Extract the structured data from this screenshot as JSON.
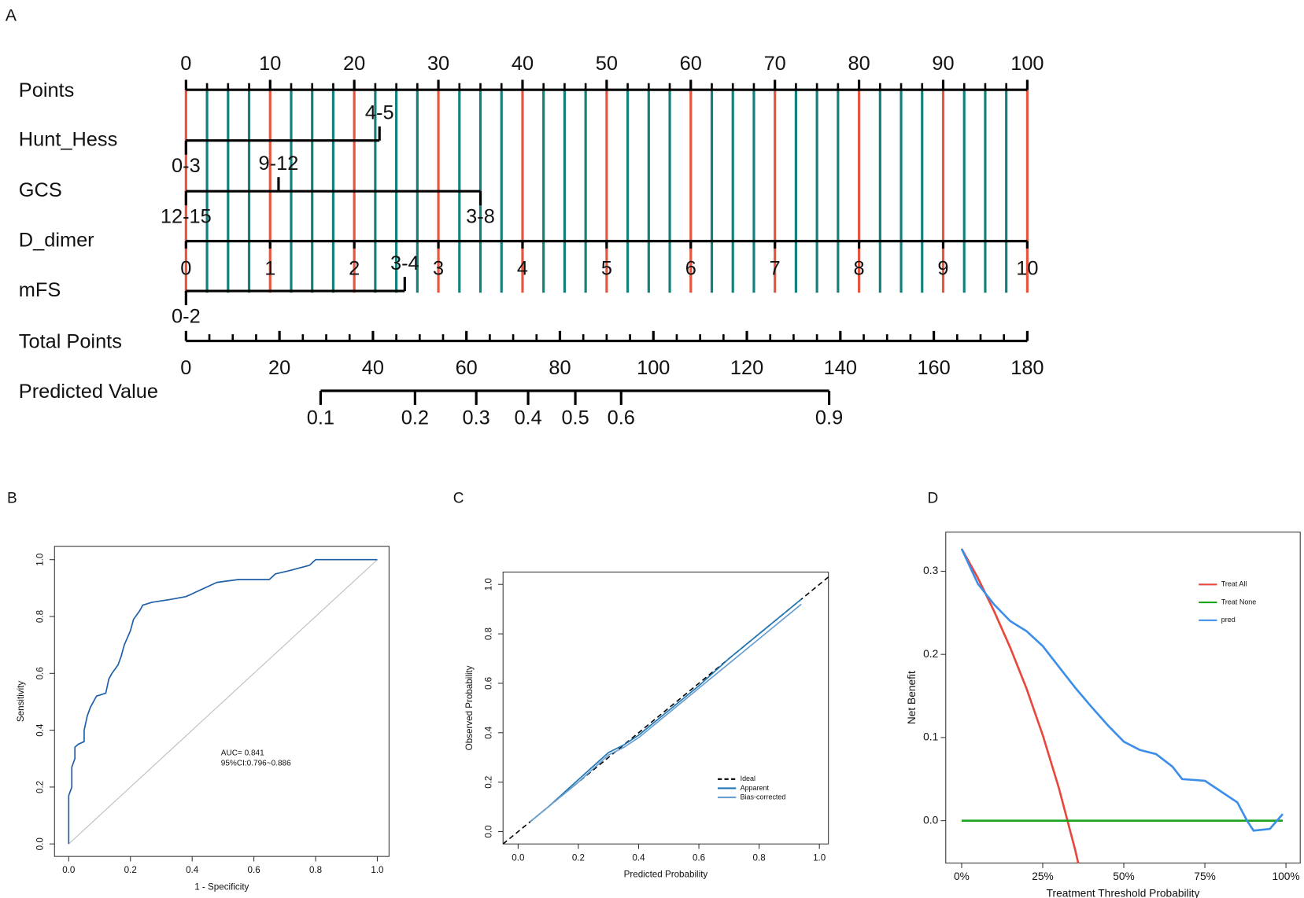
{
  "chart_data": [
    {
      "type": "nomogram",
      "panel": "A",
      "points": {
        "name": "Points",
        "lim": [
          0,
          100
        ],
        "ticks": [
          0,
          10,
          20,
          30,
          40,
          50,
          60,
          70,
          80,
          90,
          100
        ],
        "minor_ticks": [
          0,
          2.5,
          5,
          7.5,
          10,
          12.5,
          15,
          17.5,
          20,
          22.5,
          25,
          27.5,
          30,
          32.5,
          35,
          37.5,
          40,
          42.5,
          45,
          47.5,
          50,
          52.5,
          55,
          57.5,
          60,
          62.5,
          65,
          67.5,
          70,
          72.5,
          75,
          77.5,
          80,
          82.5,
          85,
          87.5,
          90,
          92.5,
          95,
          97.5,
          100
        ]
      },
      "grid_colors": {
        "major": "#e8553f",
        "minor": "#13807c"
      },
      "variables": [
        {
          "name": "Hunt_Hess",
          "levels": [
            {
              "label": "0-3",
              "points": 0
            },
            {
              "label": "4-5",
              "points": 23
            }
          ]
        },
        {
          "name": "GCS",
          "levels": [
            {
              "label": "12-15",
              "points": 0
            },
            {
              "label": "9-12",
              "points": 11
            },
            {
              "label": "3-8",
              "points": 35
            }
          ]
        },
        {
          "name": "D_dimer",
          "lim": [
            0,
            10
          ],
          "points_range": [
            0,
            100
          ],
          "ticks": [
            0,
            1,
            2,
            3,
            4,
            5,
            6,
            7,
            8,
            9,
            10
          ]
        },
        {
          "name": "mFS",
          "levels": [
            {
              "label": "0-2",
              "points": 0
            },
            {
              "label": "3-4",
              "points": 26
            }
          ]
        }
      ],
      "total_points": {
        "name": "Total Points",
        "lim": [
          0,
          180
        ],
        "ticks": [
          0,
          20,
          40,
          60,
          80,
          100,
          120,
          140,
          160,
          180
        ],
        "minor_ticks": [
          0,
          5,
          10,
          15,
          20,
          25,
          30,
          35,
          40,
          45,
          50,
          55,
          60,
          65,
          70,
          75,
          80,
          85,
          90,
          95,
          100,
          105,
          110,
          115,
          120,
          125,
          130,
          135,
          140,
          145,
          150,
          155,
          160,
          165,
          170,
          175,
          180
        ]
      },
      "predicted": {
        "name": "Predicted Value",
        "ticks": [
          {
            "value": 0.1,
            "total_points": 28.8
          },
          {
            "value": 0.2,
            "total_points": 49
          },
          {
            "value": 0.3,
            "total_points": 62.1
          },
          {
            "value": 0.4,
            "total_points": 73.2
          },
          {
            "value": 0.5,
            "total_points": 83.3
          },
          {
            "value": 0.6,
            "total_points": 93.1
          },
          {
            "value": 0.9,
            "total_points": 137.6
          }
        ]
      }
    },
    {
      "type": "line",
      "panel": "B",
      "x_label": "1 - Specificity",
      "y_label": "Sensitivity",
      "xlim": [
        -0.046,
        1.038
      ],
      "ylim": [
        -0.044,
        1.047
      ],
      "xticks": [
        {
          "value": 0,
          "label": "0.0"
        },
        {
          "value": 0.2,
          "label": "0.2"
        },
        {
          "value": 0.4,
          "label": "0.4"
        },
        {
          "value": 0.6,
          "label": "0.6"
        },
        {
          "value": 0.8,
          "label": "0.8"
        },
        {
          "value": 1,
          "label": "1.0"
        }
      ],
      "yticks": [
        {
          "value": 0,
          "label": "0.0"
        },
        {
          "value": 0.2,
          "label": "0.2"
        },
        {
          "value": 0.4,
          "label": "0.4"
        },
        {
          "value": 0.6,
          "label": "0.6"
        },
        {
          "value": 0.8,
          "label": "0.8"
        },
        {
          "value": 1,
          "label": "1.0"
        }
      ],
      "reference": {
        "x": [
          0,
          1
        ],
        "y": [
          0,
          1
        ],
        "color": "#bbbbbb"
      },
      "series": [
        {
          "color": "#1f5fa8",
          "x": [
            0,
            0,
            0.01,
            0.01,
            0.02,
            0.02,
            0.03,
            0.05,
            0.05,
            0.06,
            0.07,
            0.08,
            0.09,
            0.12,
            0.13,
            0.14,
            0.16,
            0.17,
            0.18,
            0.2,
            0.21,
            0.23,
            0.24,
            0.27,
            0.33,
            0.38,
            0.4,
            0.42,
            0.44,
            0.48,
            0.55,
            0.65,
            0.67,
            0.71,
            0.78,
            0.8,
            1
          ],
          "values": [
            0,
            0.17,
            0.2,
            0.27,
            0.3,
            0.34,
            0.35,
            0.36,
            0.4,
            0.45,
            0.48,
            0.5,
            0.52,
            0.53,
            0.58,
            0.6,
            0.63,
            0.66,
            0.7,
            0.75,
            0.79,
            0.82,
            0.84,
            0.85,
            0.86,
            0.87,
            0.88,
            0.89,
            0.9,
            0.92,
            0.93,
            0.93,
            0.95,
            0.96,
            0.98,
            1,
            1
          ]
        }
      ],
      "annotations": [
        "AUC= 0.841",
        "95%CI:0.796~0.886"
      ]
    },
    {
      "type": "line",
      "panel": "C",
      "x_label": "Predicted Probability",
      "y_label": "Observed Probability",
      "xlim": [
        -0.05,
        1.03
      ],
      "ylim": [
        -0.05,
        1.05
      ],
      "xticks": [
        {
          "value": 0,
          "label": "0.0"
        },
        {
          "value": 0.2,
          "label": "0.2"
        },
        {
          "value": 0.4,
          "label": "0.4"
        },
        {
          "value": 0.6,
          "label": "0.6"
        },
        {
          "value": 0.8,
          "label": "0.8"
        },
        {
          "value": 1,
          "label": "1.0"
        }
      ],
      "yticks": [
        {
          "value": 0,
          "label": "0.0"
        },
        {
          "value": 0.2,
          "label": "0.2"
        },
        {
          "value": 0.4,
          "label": "0.4"
        },
        {
          "value": 0.6,
          "label": "0.6"
        },
        {
          "value": 0.8,
          "label": "0.8"
        },
        {
          "value": 1,
          "label": "1.0"
        }
      ],
      "legend": "lower right",
      "series": [
        {
          "name": "Ideal",
          "color": "#000000",
          "linestyle": "dashed",
          "x": [
            -0.05,
            1.03
          ],
          "values": [
            -0.05,
            1.03
          ]
        },
        {
          "name": "Apparent",
          "color": "#1f77b4",
          "x": [
            0.04,
            0.1,
            0.2,
            0.3,
            0.35,
            0.4,
            0.5,
            0.6,
            0.7,
            0.8,
            0.9,
            0.94
          ],
          "values": [
            0.04,
            0.1,
            0.21,
            0.32,
            0.35,
            0.39,
            0.49,
            0.59,
            0.7,
            0.8,
            0.9,
            0.94
          ]
        },
        {
          "name": "Bias-corrected",
          "color": "#6a9fcf",
          "x": [
            0.04,
            0.1,
            0.2,
            0.3,
            0.35,
            0.4,
            0.5,
            0.6,
            0.7,
            0.8,
            0.9,
            0.94
          ],
          "values": [
            0.04,
            0.1,
            0.2,
            0.31,
            0.34,
            0.38,
            0.48,
            0.58,
            0.68,
            0.78,
            0.88,
            0.92
          ]
        }
      ]
    },
    {
      "type": "line",
      "panel": "D",
      "x_label": "Treatment Threshold Probability",
      "y_label": "Net Benefit",
      "xlim": [
        -0.049,
        1.044
      ],
      "ylim": [
        -0.051,
        0.347
      ],
      "xticks": [
        {
          "value": 0,
          "label": "0%"
        },
        {
          "value": 0.25,
          "label": "25%"
        },
        {
          "value": 0.5,
          "label": "50%"
        },
        {
          "value": 0.75,
          "label": "75%"
        },
        {
          "value": 1,
          "label": "100%"
        }
      ],
      "yticks": [
        {
          "value": 0,
          "label": "0.0"
        },
        {
          "value": 0.1,
          "label": "0.1"
        },
        {
          "value": 0.2,
          "label": "0.2"
        },
        {
          "value": 0.3,
          "label": "0.3"
        }
      ],
      "legend": "upper right",
      "series": [
        {
          "name": "Treat All",
          "color": "#e8473c",
          "x": [
            0,
            0.05,
            0.1,
            0.15,
            0.2,
            0.25,
            0.3,
            0.35,
            0.36
          ],
          "values": [
            0.327,
            0.292,
            0.252,
            0.208,
            0.159,
            0.103,
            0.039,
            -0.035,
            -0.052
          ]
        },
        {
          "name": "Treat None",
          "color": "#1aa31a",
          "x": [
            0,
            0.99
          ],
          "values": [
            0,
            0
          ]
        },
        {
          "name": "pred",
          "color": "#3d8ee8",
          "x": [
            0,
            0.05,
            0.1,
            0.15,
            0.2,
            0.25,
            0.3,
            0.35,
            0.4,
            0.45,
            0.5,
            0.55,
            0.6,
            0.65,
            0.68,
            0.75,
            0.8,
            0.85,
            0.88,
            0.9,
            0.95,
            0.99
          ],
          "values": [
            0.327,
            0.285,
            0.26,
            0.24,
            0.228,
            0.21,
            0.185,
            0.16,
            0.137,
            0.115,
            0.095,
            0.085,
            0.08,
            0.065,
            0.05,
            0.048,
            0.035,
            0.022,
            0,
            -0.012,
            -0.01,
            0.008
          ]
        }
      ]
    }
  ]
}
